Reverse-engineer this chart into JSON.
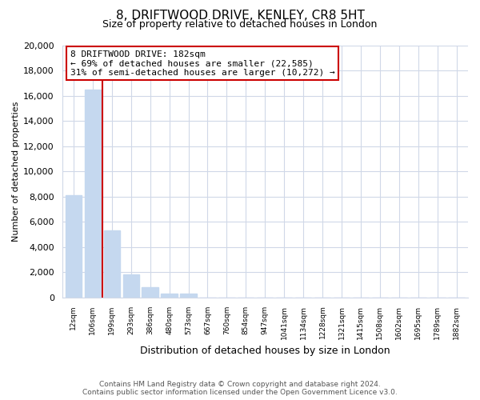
{
  "title": "8, DRIFTWOOD DRIVE, KENLEY, CR8 5HT",
  "subtitle": "Size of property relative to detached houses in London",
  "xlabel": "Distribution of detached houses by size in London",
  "ylabel": "Number of detached properties",
  "categories": [
    "12sqm",
    "106sqm",
    "199sqm",
    "293sqm",
    "386sqm",
    "480sqm",
    "573sqm",
    "667sqm",
    "760sqm",
    "854sqm",
    "947sqm",
    "1041sqm",
    "1134sqm",
    "1228sqm",
    "1321sqm",
    "1415sqm",
    "1508sqm",
    "1602sqm",
    "1695sqm",
    "1789sqm",
    "1882sqm"
  ],
  "values": [
    8100,
    16500,
    5300,
    1850,
    800,
    280,
    280,
    0,
    0,
    0,
    0,
    0,
    0,
    0,
    0,
    0,
    0,
    0,
    0,
    0,
    0
  ],
  "bar_color": "#c5d8ef",
  "vline_color": "#cc0000",
  "vline_position": 1.5,
  "ylim": [
    0,
    20000
  ],
  "yticks": [
    0,
    2000,
    4000,
    6000,
    8000,
    10000,
    12000,
    14000,
    16000,
    18000,
    20000
  ],
  "annotation_line1": "8 DRIFTWOOD DRIVE: 182sqm",
  "annotation_line2": "← 69% of detached houses are smaller (22,585)",
  "annotation_line3": "31% of semi-detached houses are larger (10,272) →",
  "footer_line1": "Contains HM Land Registry data © Crown copyright and database right 2024.",
  "footer_line2": "Contains public sector information licensed under the Open Government Licence v3.0.",
  "grid_color": "#d0d8e8",
  "background_color": "#ffffff",
  "title_fontsize": 11,
  "subtitle_fontsize": 9,
  "ylabel_fontsize": 8,
  "xlabel_fontsize": 9,
  "tick_fontsize": 8,
  "xtick_fontsize": 6.5,
  "annotation_fontsize": 8,
  "footer_fontsize": 6.5
}
